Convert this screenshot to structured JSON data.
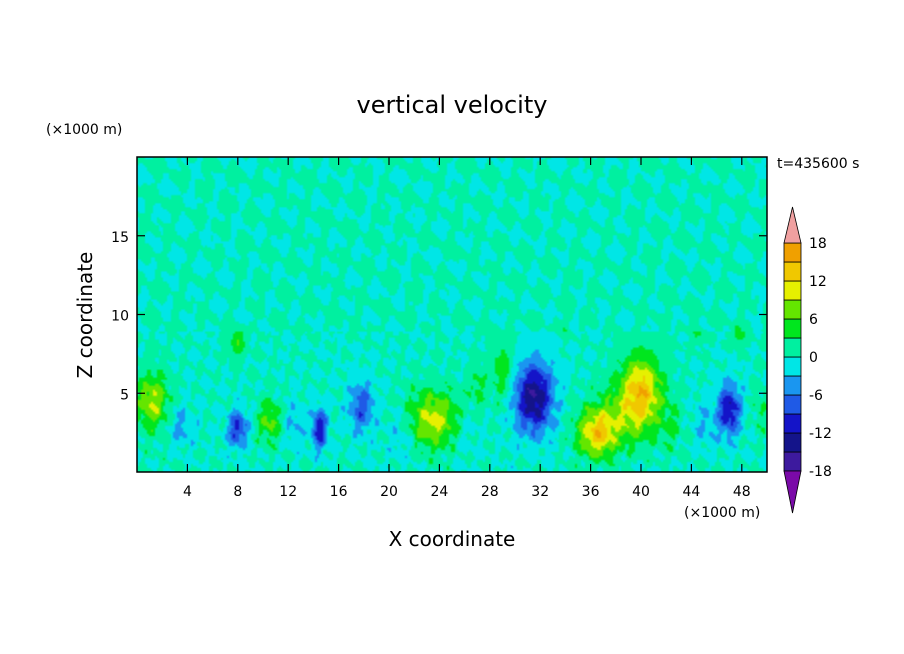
{
  "chart_data": {
    "type": "heatmap",
    "title": "vertical velocity",
    "xlabel": "X coordinate",
    "ylabel": "Z coordinate",
    "x_unit": "(×1000 m)",
    "y_unit": "(×1000 m)",
    "time_label": "t=435600 s",
    "xlim": [
      0,
      50
    ],
    "ylim": [
      0,
      20
    ],
    "x_ticks": [
      4,
      8,
      12,
      16,
      20,
      24,
      28,
      32,
      36,
      40,
      44,
      48
    ],
    "y_ticks": [
      5,
      10,
      15
    ],
    "colorbar": {
      "range": [
        -21,
        21
      ],
      "levels": [
        -18,
        -15,
        -12,
        -9,
        -6,
        -3,
        0,
        3,
        6,
        9,
        12,
        15,
        18
      ],
      "tick_labels": [
        18,
        12,
        6,
        0,
        -6,
        -12,
        -18
      ],
      "extend": "both",
      "colors": [
        "#7a0aa8",
        "#3d1a9e",
        "#14148a",
        "#1414c8",
        "#1f5ae6",
        "#1a96f0",
        "#00e6e6",
        "#00f0a0",
        "#00e61e",
        "#64e600",
        "#e6f000",
        "#f0c800",
        "#f0a000",
        "#f07800",
        "#e64600",
        "#e61414",
        "#f0a0a0"
      ]
    },
    "field": {
      "background": 1,
      "upper_level": 0.2,
      "features": [
        {
          "x": 1.2,
          "z": 4.5,
          "w": 9,
          "sx": 1.3,
          "sz": 1.8
        },
        {
          "x": 3.5,
          "z": 3.0,
          "w": -4,
          "sx": 1.0,
          "sz": 1.3
        },
        {
          "x": 8.0,
          "z": 2.8,
          "w": -10,
          "sx": 0.8,
          "sz": 1.1
        },
        {
          "x": 8.0,
          "z": 8.3,
          "w": 6,
          "sx": 0.6,
          "sz": 1.0
        },
        {
          "x": 10.5,
          "z": 3.3,
          "w": 7,
          "sx": 0.9,
          "sz": 1.3
        },
        {
          "x": 14.5,
          "z": 2.8,
          "w": -11,
          "sx": 0.6,
          "sz": 1.3
        },
        {
          "x": 17.8,
          "z": 4.2,
          "w": -8,
          "sx": 1.0,
          "sz": 1.6
        },
        {
          "x": 23.5,
          "z": 3.4,
          "w": 10,
          "sx": 2.0,
          "sz": 1.8
        },
        {
          "x": 27.0,
          "z": 5.5,
          "w": 4,
          "sx": 0.7,
          "sz": 1.2
        },
        {
          "x": 29.0,
          "z": 6.5,
          "w": 5,
          "sx": 0.9,
          "sz": 2.0
        },
        {
          "x": 31.5,
          "z": 4.8,
          "w": -15,
          "sx": 1.5,
          "sz": 2.2
        },
        {
          "x": 36.5,
          "z": 2.5,
          "w": 12,
          "sx": 1.5,
          "sz": 1.5
        },
        {
          "x": 40.0,
          "z": 5.2,
          "w": 13,
          "sx": 1.6,
          "sz": 2.2
        },
        {
          "x": 38.5,
          "z": 3.5,
          "w": 5,
          "sx": 2.5,
          "sz": 2.0
        },
        {
          "x": 42.5,
          "z": 3.0,
          "w": 3,
          "sx": 1.0,
          "sz": 1.5
        },
        {
          "x": 47.0,
          "z": 4.0,
          "w": -12,
          "sx": 0.9,
          "sz": 1.6
        },
        {
          "x": 45.0,
          "z": 3.0,
          "w": -3,
          "sx": 1.0,
          "sz": 1.5
        },
        {
          "x": 44.5,
          "z": 9.0,
          "w": 4,
          "sx": 0.5,
          "sz": 0.7
        },
        {
          "x": 47.8,
          "z": 8.8,
          "w": 5,
          "sx": 0.5,
          "sz": 0.7
        },
        {
          "x": 34.0,
          "z": 9.3,
          "w": 4,
          "sx": 0.4,
          "sz": 0.6
        },
        {
          "x": 49.5,
          "z": 4.0,
          "w": 3,
          "sx": 0.6,
          "sz": 1.4
        },
        {
          "x": 21.0,
          "z": 2.5,
          "w": -3,
          "sx": 1.0,
          "sz": 1.5
        },
        {
          "x": 26.0,
          "z": 2.5,
          "w": -2,
          "sx": 1.0,
          "sz": 1.5
        },
        {
          "x": 12.5,
          "z": 3.0,
          "w": -3,
          "sx": 0.8,
          "sz": 1.5
        }
      ]
    }
  }
}
